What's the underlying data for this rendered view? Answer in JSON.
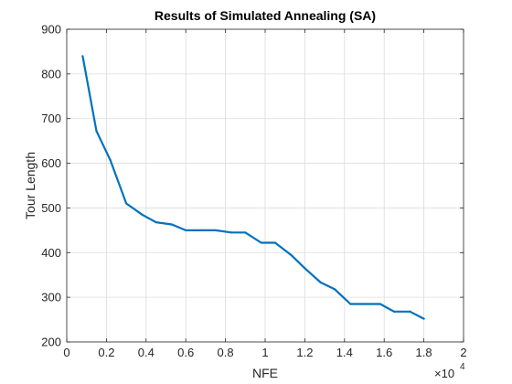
{
  "chart_data": {
    "type": "line",
    "title": "Results of Simulated Annealing (SA)",
    "xlabel": "NFE",
    "ylabel": "Tour Length",
    "x_exponent_label": "×10",
    "x_exponent": "4",
    "xlim": [
      0,
      2
    ],
    "ylim": [
      200,
      900
    ],
    "xticks": [
      0,
      0.2,
      0.4,
      0.6,
      0.8,
      1,
      1.2,
      1.4,
      1.6,
      1.8,
      2
    ],
    "xtick_labels": [
      "0",
      "0.2",
      "0.4",
      "0.6",
      "0.8",
      "1",
      "1.2",
      "1.4",
      "1.6",
      "1.8",
      "2"
    ],
    "yticks": [
      200,
      300,
      400,
      500,
      600,
      700,
      800,
      900
    ],
    "ytick_labels": [
      "200",
      "300",
      "400",
      "500",
      "600",
      "700",
      "800",
      "900"
    ],
    "grid": true,
    "line_color": "#0072BD",
    "series": [
      {
        "x": [
          0.08,
          0.15,
          0.22,
          0.3,
          0.38,
          0.45,
          0.53,
          0.6,
          0.68,
          0.75,
          0.83,
          0.9,
          0.98,
          1.05,
          1.13,
          1.2,
          1.28,
          1.35,
          1.43,
          1.5,
          1.58,
          1.65,
          1.73,
          1.8
        ],
        "values": [
          840,
          672,
          607,
          510,
          485,
          468,
          463,
          450,
          450,
          450,
          445,
          445,
          422,
          422,
          395,
          365,
          333,
          318,
          285,
          285,
          285,
          268,
          268,
          252
        ]
      }
    ]
  }
}
